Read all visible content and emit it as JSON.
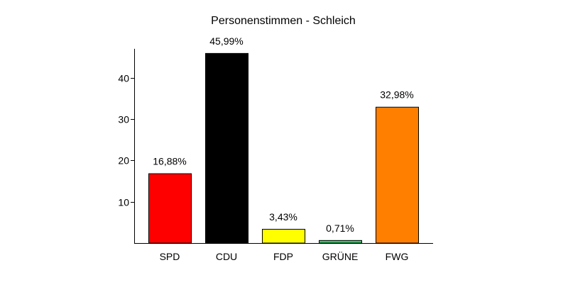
{
  "chart_data": {
    "type": "bar",
    "title": "Personenstimmen - Schleich",
    "categories": [
      "SPD",
      "CDU",
      "FDP",
      "GRÜNE",
      "FWG"
    ],
    "values": [
      16.88,
      45.99,
      3.43,
      0.71,
      32.98
    ],
    "value_labels": [
      "16,88%",
      "45,99%",
      "3,43%",
      "0,71%",
      "32,98%"
    ],
    "colors": [
      "#ff0000",
      "#000000",
      "#ffff00",
      "#33cc66",
      "#ff8000"
    ],
    "yticks": [
      10,
      20,
      30,
      40
    ],
    "ylim": [
      0,
      46
    ],
    "grid": false,
    "xlabel": "",
    "ylabel": ""
  }
}
